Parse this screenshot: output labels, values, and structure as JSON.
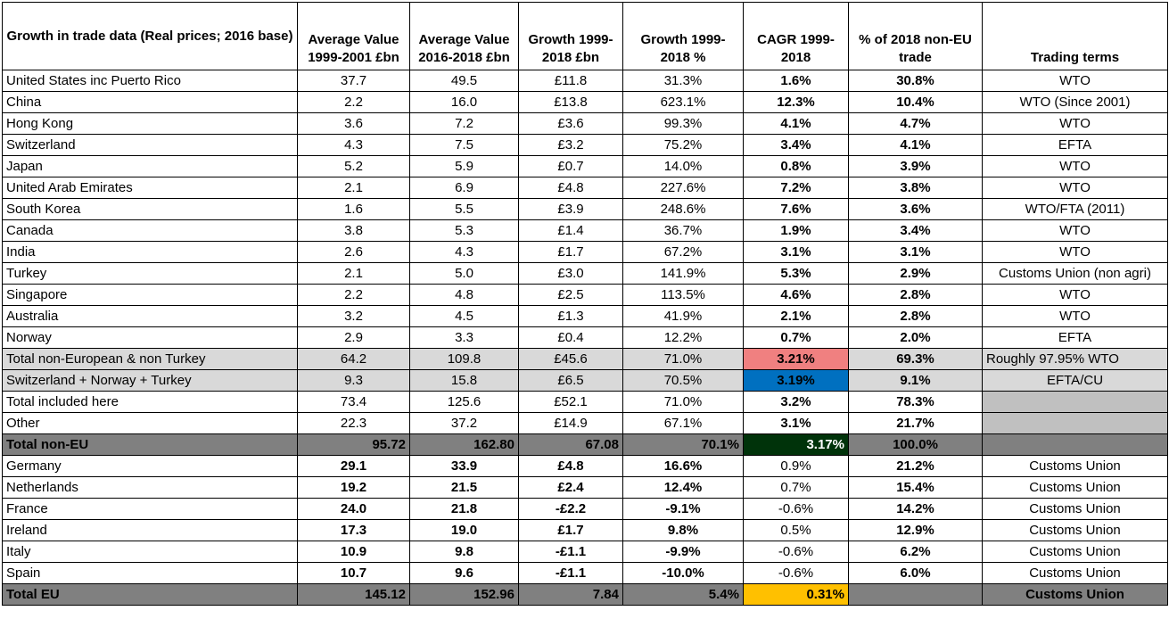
{
  "headers": [
    "Growth in trade data (Real prices; 2016 base)",
    "Average Value 1999-2001 £bn",
    "Average Value 2016-2018 £bn",
    "Growth 1999-2018 £bn",
    "Growth 1999-2018 %",
    "CAGR 1999-2018",
    "% of 2018 non-EU trade",
    "Trading terms"
  ],
  "rows": [
    {
      "name": "United States inc Puerto Rico",
      "avg1": "37.7",
      "avg2": "49.5",
      "growth": "£11.8",
      "growth_pct": "31.3%",
      "cagr": "1.6%",
      "share": "30.8%",
      "terms": "WTO"
    },
    {
      "name": "China",
      "avg1": "2.2",
      "avg2": "16.0",
      "growth": "£13.8",
      "growth_pct": "623.1%",
      "cagr": "12.3%",
      "share": "10.4%",
      "terms": "WTO (Since 2001)"
    },
    {
      "name": "Hong Kong",
      "avg1": "3.6",
      "avg2": "7.2",
      "growth": "£3.6",
      "growth_pct": "99.3%",
      "cagr": "4.1%",
      "share": "4.7%",
      "terms": "WTO"
    },
    {
      "name": "Switzerland",
      "avg1": "4.3",
      "avg2": "7.5",
      "growth": "£3.2",
      "growth_pct": "75.2%",
      "cagr": "3.4%",
      "share": "4.1%",
      "terms": "EFTA"
    },
    {
      "name": "Japan",
      "avg1": "5.2",
      "avg2": "5.9",
      "growth": "£0.7",
      "growth_pct": "14.0%",
      "cagr": "0.8%",
      "share": "3.9%",
      "terms": "WTO"
    },
    {
      "name": "United Arab Emirates",
      "avg1": "2.1",
      "avg2": "6.9",
      "growth": "£4.8",
      "growth_pct": "227.6%",
      "cagr": "7.2%",
      "share": "3.8%",
      "terms": "WTO"
    },
    {
      "name": "South Korea",
      "avg1": "1.6",
      "avg2": "5.5",
      "growth": "£3.9",
      "growth_pct": "248.6%",
      "cagr": "7.6%",
      "share": "3.6%",
      "terms": "WTO/FTA (2011)"
    },
    {
      "name": "Canada",
      "avg1": "3.8",
      "avg2": "5.3",
      "growth": "£1.4",
      "growth_pct": "36.7%",
      "cagr": "1.9%",
      "share": "3.4%",
      "terms": "WTO"
    },
    {
      "name": "India",
      "avg1": "2.6",
      "avg2": "4.3",
      "growth": "£1.7",
      "growth_pct": "67.2%",
      "cagr": "3.1%",
      "share": "3.1%",
      "terms": "WTO"
    },
    {
      "name": "Turkey",
      "avg1": "2.1",
      "avg2": "5.0",
      "growth": "£3.0",
      "growth_pct": "141.9%",
      "cagr": "5.3%",
      "share": "2.9%",
      "terms": "Customs Union (non agri)"
    },
    {
      "name": "Singapore",
      "avg1": "2.2",
      "avg2": "4.8",
      "growth": "£2.5",
      "growth_pct": "113.5%",
      "cagr": "4.6%",
      "share": "2.8%",
      "terms": "WTO"
    },
    {
      "name": "Australia",
      "avg1": "3.2",
      "avg2": "4.5",
      "growth": "£1.3",
      "growth_pct": "41.9%",
      "cagr": "2.1%",
      "share": "2.8%",
      "terms": "WTO"
    },
    {
      "name": "Norway",
      "avg1": "2.9",
      "avg2": "3.3",
      "growth": "£0.4",
      "growth_pct": "12.2%",
      "cagr": "0.7%",
      "share": "2.0%",
      "terms": "EFTA"
    }
  ],
  "subtotals": [
    {
      "name": "Total non-European & non Turkey",
      "avg1": "64.2",
      "avg2": "109.8",
      "growth": "£45.6",
      "growth_pct": "71.0%",
      "cagr": "3.21%",
      "share": "69.3%",
      "terms": "Roughly 97.95% WTO",
      "cagr_color": "#f08080"
    },
    {
      "name": "Switzerland + Norway + Turkey",
      "avg1": "9.3",
      "avg2": "15.8",
      "growth": "£6.5",
      "growth_pct": "70.5%",
      "cagr": "3.19%",
      "share": "9.1%",
      "terms": "EFTA/CU",
      "cagr_color": "#0070c0"
    }
  ],
  "others": [
    {
      "name": "Total included here",
      "avg1": "73.4",
      "avg2": "125.6",
      "growth": "£52.1",
      "growth_pct": "71.0%",
      "cagr": "3.2%",
      "share": "78.3%",
      "terms": ""
    },
    {
      "name": "Other",
      "avg1": "22.3",
      "avg2": "37.2",
      "growth": "£14.9",
      "growth_pct": "67.1%",
      "cagr": "3.1%",
      "share": "21.7%",
      "terms": ""
    }
  ],
  "total_non_eu": {
    "name": "Total non-EU",
    "avg1": "95.72",
    "avg2": "162.80",
    "growth": "67.08",
    "growth_pct": "70.1%",
    "cagr": "3.17%",
    "share": "100.0%",
    "terms": "",
    "cagr_color": "#00330a"
  },
  "eu_rows": [
    {
      "name": "Germany",
      "avg1": "29.1",
      "avg2": "33.9",
      "growth": "£4.8",
      "growth_pct": "16.6%",
      "cagr": "0.9%",
      "share": "21.2%",
      "terms": "Customs Union"
    },
    {
      "name": "Netherlands",
      "avg1": "19.2",
      "avg2": "21.5",
      "growth": "£2.4",
      "growth_pct": "12.4%",
      "cagr": "0.7%",
      "share": "15.4%",
      "terms": "Customs Union"
    },
    {
      "name": "France",
      "avg1": "24.0",
      "avg2": "21.8",
      "growth": "-£2.2",
      "growth_pct": "-9.1%",
      "cagr": "-0.6%",
      "share": "14.2%",
      "terms": "Customs Union"
    },
    {
      "name": "Ireland",
      "avg1": "17.3",
      "avg2": "19.0",
      "growth": "£1.7",
      "growth_pct": "9.8%",
      "cagr": "0.5%",
      "share": "12.9%",
      "terms": "Customs Union"
    },
    {
      "name": "Italy",
      "avg1": "10.9",
      "avg2": "9.8",
      "growth": "-£1.1",
      "growth_pct": "-9.9%",
      "cagr": "-0.6%",
      "share": "6.2%",
      "terms": "Customs Union"
    },
    {
      "name": "Spain",
      "avg1": "10.7",
      "avg2": "9.6",
      "growth": "-£1.1",
      "growth_pct": "-10.0%",
      "cagr": "-0.6%",
      "share": "6.0%",
      "terms": "Customs Union"
    }
  ],
  "total_eu": {
    "name": "Total EU",
    "avg1": "145.12",
    "avg2": "152.96",
    "growth": "7.84",
    "growth_pct": "5.4%",
    "cagr": "0.31%",
    "share": "",
    "terms": "Customs Union",
    "cagr_color": "#ffc000"
  }
}
